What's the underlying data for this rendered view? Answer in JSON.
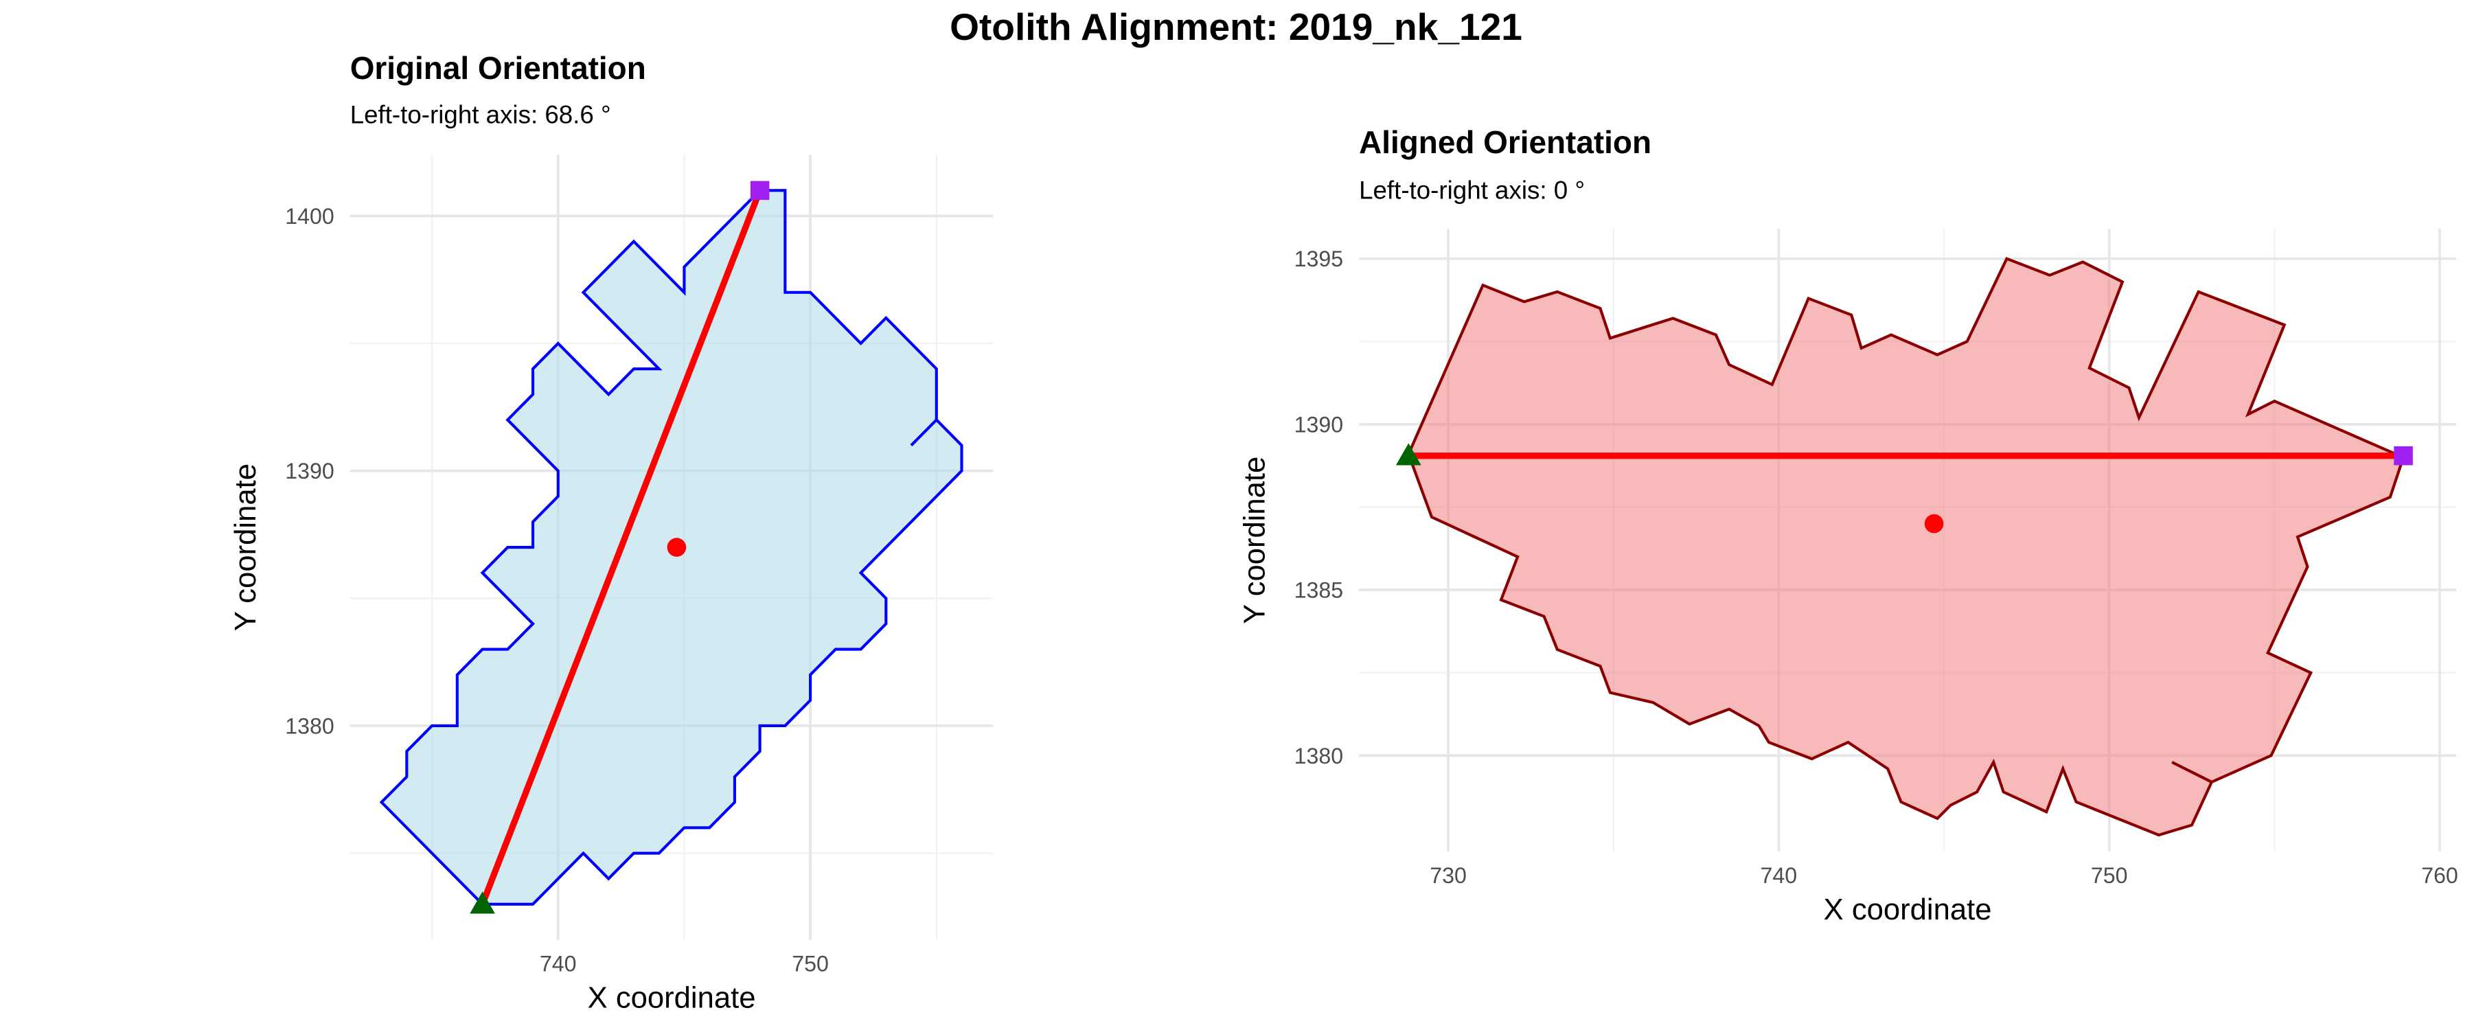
{
  "title": "Otolith Alignment: 2019_nk_121",
  "chart_data": [
    {
      "type": "outline",
      "title": "Original Orientation",
      "subtitle": "Left-to-right axis: 68.6 °",
      "x_label": "X coordinate",
      "y_label": "Y coordinate",
      "xlim": [
        731.75,
        757.25
      ],
      "ylim": [
        1371.6,
        1402.4
      ],
      "xticks": [
        740,
        750
      ],
      "yticks": [
        1380,
        1390,
        1400
      ],
      "x_minor": [
        735,
        745,
        755
      ],
      "y_minor": [
        1375,
        1385,
        1395
      ],
      "grid": true,
      "outline": {
        "color": "#0000ff",
        "fill": "#add8e6",
        "x": [
          754,
          755,
          756,
          756,
          754,
          753,
          752,
          753,
          753,
          752,
          751,
          750,
          750,
          749,
          748,
          748,
          747,
          747,
          746,
          745,
          744,
          743,
          742,
          741,
          739,
          737,
          733,
          734,
          734,
          735,
          736,
          736,
          737,
          738,
          739,
          737,
          738,
          739,
          739,
          740,
          740,
          738,
          739,
          739,
          740,
          742,
          743,
          744,
          741,
          743,
          745,
          745,
          748,
          749,
          749,
          750,
          752,
          753,
          755,
          755
        ],
        "y": [
          1391,
          1392,
          1391,
          1390,
          1388,
          1387,
          1386,
          1385,
          1384,
          1383,
          1383,
          1382,
          1381,
          1380,
          1380,
          1379,
          1378,
          1377,
          1376,
          1376,
          1375,
          1375,
          1374,
          1375,
          1373,
          1373,
          1377,
          1378,
          1379,
          1380,
          1380,
          1382,
          1383,
          1383,
          1384,
          1386,
          1387,
          1387,
          1388,
          1389,
          1390,
          1392,
          1393,
          1394,
          1395,
          1393,
          1394,
          1394,
          1397,
          1399,
          1397,
          1398,
          1401,
          1401,
          1397,
          1397,
          1395,
          1396,
          1394,
          1392
        ]
      },
      "axis_line": {
        "color": "#ff0000",
        "x": [
          737,
          748
        ],
        "y": [
          1373,
          1401
        ]
      },
      "centroid": {
        "color": "#ff0000",
        "x": 744.7,
        "y": 1387.0
      },
      "start": {
        "color": "#006400",
        "x": 737,
        "y": 1373
      },
      "end": {
        "color": "#a020f0",
        "x": 748,
        "y": 1401
      }
    },
    {
      "type": "outline",
      "title": "Aligned Orientation",
      "subtitle": "Left-to-right axis: 0 °",
      "x_label": "X coordinate",
      "y_label": "Y coordinate",
      "xlim": [
        727.3,
        760.5
      ],
      "ylim": [
        1377.1,
        1395.9
      ],
      "xticks": [
        730,
        740,
        750,
        760
      ],
      "yticks": [
        1380,
        1385,
        1390,
        1395
      ],
      "x_minor": [
        735,
        745,
        755
      ],
      "y_minor": [
        1382.5,
        1387.5,
        1392.5
      ],
      "grid": true,
      "outline": {
        "color": "#8b0000",
        "fill": "#f08080",
        "x": [
          751.9,
          753.1,
          754.9,
          756.1,
          754.8,
          756.0,
          755.7,
          758.5,
          758.9,
          755.0,
          754.2,
          755.3,
          752.7,
          750.9,
          750.6,
          749.4,
          750.4,
          749.2,
          748.2,
          746.9,
          745.7,
          744.8,
          743.4,
          742.5,
          742.2,
          740.9,
          739.8,
          738.5,
          738.1,
          736.8,
          734.9,
          734.6,
          733.3,
          732.3,
          731.05,
          728.8,
          729.5,
          732.1,
          731.6,
          732.9,
          733.3,
          734.6,
          734.9,
          736.2,
          737.3,
          738.5,
          739.4,
          739.7,
          741.0,
          742.1,
          743.3,
          743.7,
          744.8,
          745.2,
          746.0,
          746.5,
          746.8,
          748.1,
          748.6,
          749.0,
          751.5,
          752.5,
          753.1
        ],
        "y": [
          1379.8,
          1379.2,
          1380.0,
          1382.5,
          1383.1,
          1385.7,
          1386.6,
          1387.8,
          1389.0,
          1390.7,
          1390.3,
          1393.0,
          1394.0,
          1390.2,
          1391.1,
          1391.7,
          1394.3,
          1394.9,
          1394.5,
          1395.0,
          1392.5,
          1392.1,
          1392.7,
          1392.3,
          1393.3,
          1393.8,
          1391.2,
          1391.8,
          1392.7,
          1393.2,
          1392.6,
          1393.5,
          1394.0,
          1393.7,
          1394.2,
          1389.1,
          1387.2,
          1386.0,
          1384.7,
          1384.2,
          1383.2,
          1382.7,
          1381.9,
          1381.6,
          1380.95,
          1381.4,
          1380.9,
          1380.4,
          1379.9,
          1380.4,
          1379.6,
          1378.6,
          1378.1,
          1378.5,
          1378.9,
          1379.8,
          1378.9,
          1378.3,
          1379.6,
          1378.6,
          1377.6,
          1377.9,
          1379.2
        ]
      },
      "axis_line": {
        "color": "#ff0000",
        "x": [
          728.8,
          758.9
        ],
        "y": [
          1389.05,
          1389.05
        ]
      },
      "centroid": {
        "color": "#ff0000",
        "x": 744.7,
        "y": 1387.0
      },
      "start": {
        "color": "#006400",
        "x": 728.8,
        "y": 1389.05
      },
      "end": {
        "color": "#a020f0",
        "x": 758.9,
        "y": 1389.05
      }
    }
  ]
}
